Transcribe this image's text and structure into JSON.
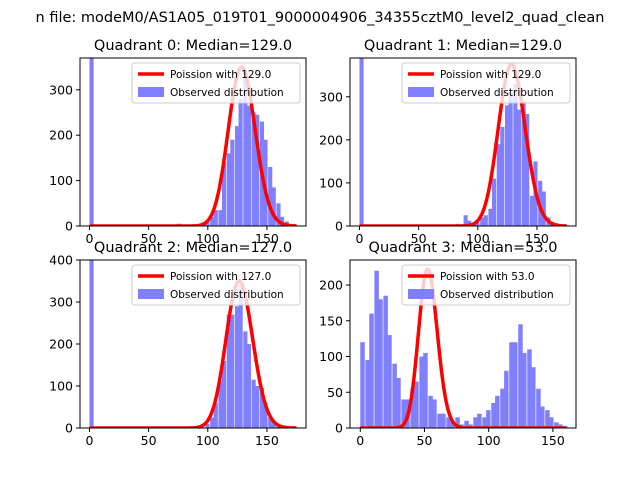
{
  "figure_title": "n file: modeM0/AS1A05_019T01_9000004906_34355cztM0_level2_quad_clean",
  "colors": {
    "fit": "#ff0000",
    "hist": "#8080ff",
    "axis": "#000000"
  },
  "chart_data": [
    {
      "type": "bar",
      "title": "Quadrant 0: Median=129.0",
      "legend": [
        "Poission with 129.0",
        "Observed distribution"
      ],
      "legend_placement": "upper-right",
      "xlim": [
        -8,
        183
      ],
      "ylim": [
        0,
        370
      ],
      "xticks": [
        0,
        50,
        100,
        150
      ],
      "yticks": [
        0,
        100,
        200,
        300
      ],
      "bin_width": 3.5,
      "hist": [
        [
          0,
          370
        ],
        [
          74,
          5
        ],
        [
          77,
          3
        ],
        [
          84,
          2
        ],
        [
          91,
          3
        ],
        [
          95,
          8
        ],
        [
          98,
          10
        ],
        [
          102,
          20
        ],
        [
          105,
          35
        ],
        [
          109,
          35
        ],
        [
          112,
          140
        ],
        [
          116,
          160
        ],
        [
          119,
          190
        ],
        [
          123,
          220
        ],
        [
          126,
          280
        ],
        [
          130,
          330
        ],
        [
          133,
          265
        ],
        [
          137,
          250
        ],
        [
          140,
          245
        ],
        [
          144,
          230
        ],
        [
          147,
          190
        ],
        [
          151,
          130
        ],
        [
          154,
          85
        ],
        [
          158,
          50
        ],
        [
          161,
          20
        ],
        [
          165,
          10
        ],
        [
          168,
          5
        ]
      ],
      "fit_mu": 129.0,
      "fit_range": [
        0,
        175
      ]
    },
    {
      "type": "bar",
      "title": "Quadrant 1: Median=129.0",
      "legend": [
        "Poission with 129.0",
        "Observed distribution"
      ],
      "legend_placement": "upper-right",
      "xlim": [
        -8,
        183
      ],
      "ylim": [
        0,
        390
      ],
      "xticks": [
        0,
        50,
        100,
        150
      ],
      "yticks": [
        0,
        100,
        200,
        300
      ],
      "bin_width": 3.5,
      "hist": [
        [
          0,
          390
        ],
        [
          81,
          5
        ],
        [
          88,
          25
        ],
        [
          91,
          12
        ],
        [
          95,
          8
        ],
        [
          98,
          8
        ],
        [
          102,
          20
        ],
        [
          105,
          25
        ],
        [
          109,
          40
        ],
        [
          112,
          110
        ],
        [
          116,
          190
        ],
        [
          119,
          230
        ],
        [
          123,
          280
        ],
        [
          126,
          310
        ],
        [
          130,
          330
        ],
        [
          133,
          270
        ],
        [
          137,
          290
        ],
        [
          140,
          260
        ],
        [
          144,
          70
        ],
        [
          147,
          150
        ],
        [
          151,
          105
        ],
        [
          154,
          80
        ],
        [
          158,
          20
        ],
        [
          161,
          10
        ],
        [
          165,
          5
        ],
        [
          172,
          3
        ]
      ],
      "fit_mu": 129.0,
      "fit_range": [
        0,
        175
      ]
    },
    {
      "type": "bar",
      "title": "Quadrant 2: Median=127.0",
      "legend": [
        "Poission with 127.0",
        "Observed distribution"
      ],
      "legend_placement": "upper-right",
      "xlim": [
        -8,
        183
      ],
      "ylim": [
        0,
        400
      ],
      "xticks": [
        0,
        50,
        100,
        150
      ],
      "yticks": [
        0,
        100,
        200,
        300,
        400
      ],
      "bin_width": 3.5,
      "hist": [
        [
          0,
          400
        ],
        [
          70,
          2
        ],
        [
          77,
          3
        ],
        [
          84,
          3
        ],
        [
          91,
          3
        ],
        [
          98,
          10
        ],
        [
          102,
          25
        ],
        [
          105,
          60
        ],
        [
          109,
          110
        ],
        [
          112,
          160
        ],
        [
          116,
          270
        ],
        [
          119,
          270
        ],
        [
          123,
          290
        ],
        [
          126,
          340
        ],
        [
          130,
          230
        ],
        [
          133,
          200
        ],
        [
          137,
          115
        ],
        [
          140,
          100
        ],
        [
          144,
          95
        ],
        [
          147,
          60
        ],
        [
          151,
          25
        ],
        [
          154,
          15
        ],
        [
          158,
          8
        ],
        [
          161,
          5
        ],
        [
          165,
          3
        ]
      ],
      "fit_mu": 127.0,
      "fit_range": [
        0,
        175
      ]
    },
    {
      "type": "bar",
      "title": "Quadrant 3: Median=53.0",
      "legend": [
        "Poission with 53.0",
        "Observed distribution"
      ],
      "legend_placement": "upper-right",
      "xlim": [
        -8,
        168
      ],
      "ylim": [
        0,
        235
      ],
      "xticks": [
        0,
        50,
        100,
        150
      ],
      "yticks": [
        0,
        50,
        100,
        150,
        200
      ],
      "bin_width": 3.5,
      "hist": [
        [
          0,
          120
        ],
        [
          4,
          95
        ],
        [
          7,
          160
        ],
        [
          11,
          220
        ],
        [
          14,
          180
        ],
        [
          18,
          185
        ],
        [
          21,
          130
        ],
        [
          25,
          90
        ],
        [
          28,
          70
        ],
        [
          32,
          40
        ],
        [
          35,
          40
        ],
        [
          39,
          55
        ],
        [
          42,
          65
        ],
        [
          46,
          100
        ],
        [
          49,
          105
        ],
        [
          53,
          45
        ],
        [
          56,
          40
        ],
        [
          60,
          20
        ],
        [
          63,
          20
        ],
        [
          67,
          15
        ],
        [
          70,
          10
        ],
        [
          74,
          15
        ],
        [
          77,
          5
        ],
        [
          81,
          10
        ],
        [
          84,
          5
        ],
        [
          88,
          15
        ],
        [
          91,
          20
        ],
        [
          95,
          15
        ],
        [
          98,
          25
        ],
        [
          102,
          35
        ],
        [
          105,
          45
        ],
        [
          109,
          55
        ],
        [
          112,
          80
        ],
        [
          116,
          120
        ],
        [
          119,
          120
        ],
        [
          123,
          145
        ],
        [
          126,
          105
        ],
        [
          130,
          110
        ],
        [
          133,
          85
        ],
        [
          137,
          55
        ],
        [
          140,
          30
        ],
        [
          144,
          25
        ],
        [
          147,
          15
        ],
        [
          151,
          8
        ],
        [
          154,
          5
        ],
        [
          158,
          3
        ]
      ],
      "fit_mu": 53.0,
      "fit_range": [
        0,
        160
      ]
    }
  ]
}
